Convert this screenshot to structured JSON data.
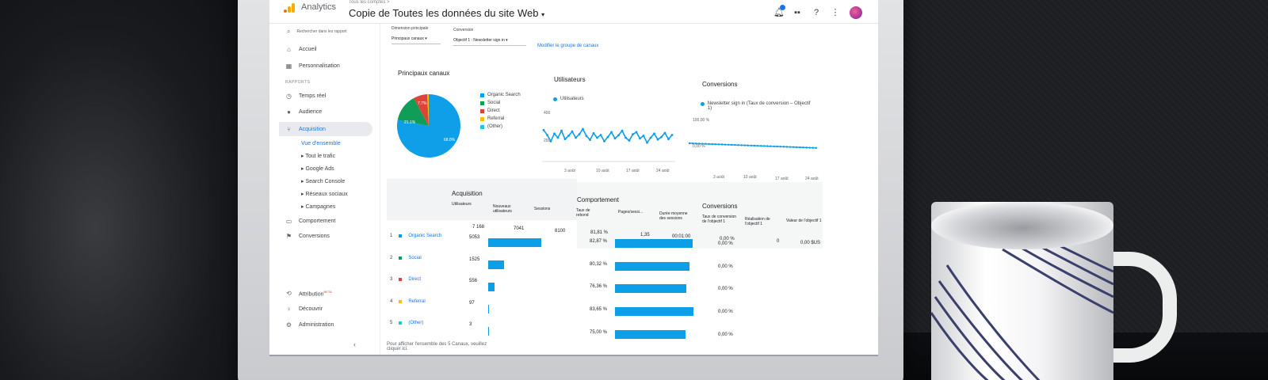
{
  "header": {
    "app_name": "Analytics",
    "crumb": "Tous les comptes >",
    "property": "Copie de Toutes les données du site Web",
    "notification_count": "1"
  },
  "sidebar": {
    "search_placeholder": "Rechercher dans les rapport",
    "items_top": [
      {
        "label": "Accueil",
        "icon": "home-icon"
      },
      {
        "label": "Personnalisation",
        "icon": "dashboard-icon"
      }
    ],
    "section_reports": "RAPPORTS",
    "items_reports": [
      {
        "label": "Temps réel",
        "icon": "clock-icon"
      },
      {
        "label": "Audience",
        "icon": "person-icon"
      },
      {
        "label": "Acquisition",
        "icon": "acquisition-icon"
      }
    ],
    "acquisition_sub": [
      {
        "label": "Vue d'ensemble"
      },
      {
        "label": "Tout le trafic"
      },
      {
        "label": "Google Ads"
      },
      {
        "label": "Search Console"
      },
      {
        "label": "Réseaux sociaux"
      },
      {
        "label": "Campagnes"
      }
    ],
    "items_after": [
      {
        "label": "Comportement",
        "icon": "behavior-icon"
      },
      {
        "label": "Conversions",
        "icon": "flag-icon"
      }
    ],
    "items_bottom": [
      {
        "label": "Attribution",
        "badge": "BETA",
        "icon": "attribution-icon"
      },
      {
        "label": "Découvrir",
        "icon": "lightbulb-icon"
      },
      {
        "label": "Administration",
        "icon": "gear-icon"
      }
    ]
  },
  "filters": {
    "dimension_label": "Dimension principale",
    "dimension_value": "Principaux canaux",
    "conversion_label": "Conversion",
    "conversion_value": "Objectif 1 : Newsletter sign in",
    "modify_link": "Modifier le groupe de canaux"
  },
  "channels_card": {
    "title": "Principaux canaux",
    "legend": [
      {
        "name": "Organic Search",
        "color": "#0f9ee8"
      },
      {
        "name": "Social",
        "color": "#0f9d58"
      },
      {
        "name": "Direct",
        "color": "#db4437"
      },
      {
        "name": "Referral",
        "color": "#f4c20d"
      },
      {
        "name": "(Other)",
        "color": "#26c6da"
      }
    ],
    "slice_labels": [
      "68.8%",
      "21.1%",
      "7.7%"
    ]
  },
  "users_card": {
    "title": "Utilisateurs",
    "legend": "Utilisateurs",
    "y_ticks": [
      "400",
      "200"
    ],
    "x_ticks": [
      "3 août",
      "10 août",
      "17 août",
      "24 août"
    ]
  },
  "conversions_card": {
    "title": "Conversions",
    "legend": "Newsletter sign in (Taux de conversion – Objectif 1)",
    "y_ticks": [
      "100,00 %",
      "0,00 %"
    ],
    "x_ticks": [
      "3 août",
      "10 août",
      "17 août",
      "24 août"
    ]
  },
  "table": {
    "section_acquisition": "Acquisition",
    "section_behavior": "Comportement",
    "section_conversions": "Conversions",
    "headers": {
      "users": "Utilisateurs",
      "new_users": "Nouveaux utilisateurs",
      "sessions": "Sessions",
      "bounce": "Taux de rebond",
      "pages": "Pages/sessi...",
      "duration": "Durée moyenne des sessions",
      "conv_rate": "Taux de conversion de l'objectif 1",
      "goal_done": "Réalisation de l'objectif 1",
      "goal_value": "Valeur de l'objectif 1"
    },
    "totals": {
      "users": "7 168",
      "new_users": "7041",
      "sessions": "8100",
      "bounce": "81,81 %",
      "pages": "1,35",
      "duration": "00:01:00",
      "conv_rate": "0,00 %",
      "goal_done": "0",
      "goal_value": "0,00 $US"
    },
    "rows": [
      {
        "idx": "1",
        "name": "Organic Search",
        "color": "#0f9ee8",
        "users": "5053",
        "users_frac": 0.7,
        "bounce": "82,87 %",
        "bounce_frac": 0.83,
        "conv": "0,00 %"
      },
      {
        "idx": "2",
        "name": "Social",
        "color": "#0f9d58",
        "users": "1525",
        "users_frac": 0.21,
        "bounce": "80,32 %",
        "bounce_frac": 0.8,
        "conv": "0,00 %"
      },
      {
        "idx": "3",
        "name": "Direct",
        "color": "#db4437",
        "users": "556",
        "users_frac": 0.08,
        "bounce": "76,36 %",
        "bounce_frac": 0.76,
        "conv": "0,00 %"
      },
      {
        "idx": "4",
        "name": "Referral",
        "color": "#f4c20d",
        "users": "97",
        "users_frac": 0.015,
        "bounce": "83,65 %",
        "bounce_frac": 0.84,
        "conv": "0,00 %"
      },
      {
        "idx": "5",
        "name": "(Other)",
        "color": "#26c6da",
        "users": "3",
        "users_frac": 0.004,
        "bounce": "75,00 %",
        "bounce_frac": 0.75,
        "conv": "0,00 %"
      }
    ],
    "footer_note": "Pour afficher l'ensemble des 5 Canaux, veuillez cliquer ici."
  }
}
